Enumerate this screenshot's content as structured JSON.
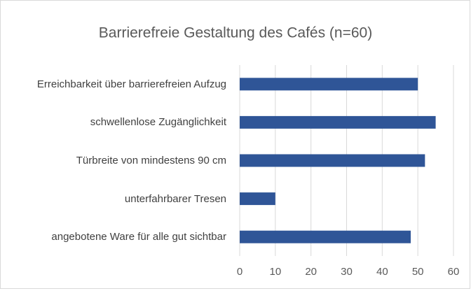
{
  "chart_data": {
    "type": "bar",
    "orientation": "horizontal",
    "title": "Barrierefreie Gestaltung des Cafés (n=60)",
    "categories": [
      "Erreichbarkeit über barrierefreien Aufzug",
      "schwellenlose Zugänglichkeit",
      "Türbreite von mindestens 90 cm",
      "unterfahrbarer Tresen",
      "angebotene Ware für alle gut sichtbar"
    ],
    "values": [
      50,
      55,
      52,
      10,
      48
    ],
    "color": "#2f5597",
    "xlim": [
      0,
      60
    ],
    "xticks": [
      0,
      10,
      20,
      30,
      40,
      50,
      60
    ],
    "grid": true
  }
}
